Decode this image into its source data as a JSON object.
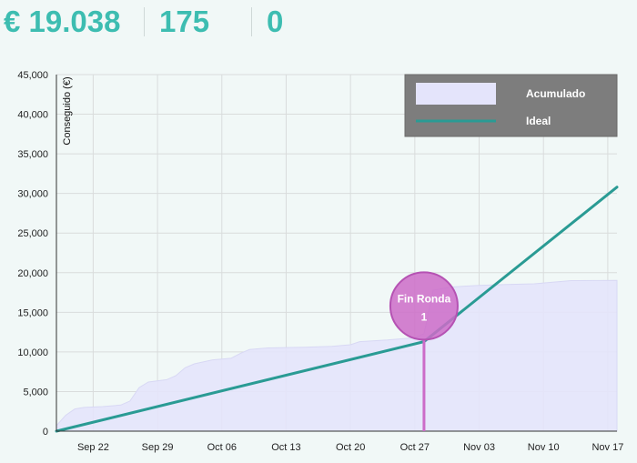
{
  "stats": {
    "amount": "€ 19.038",
    "count": "175",
    "third": "0"
  },
  "chart_data": {
    "type": "area",
    "ylabel": "Conseguido (€)",
    "ylim": [
      0,
      45000
    ],
    "yticks": [
      "0",
      "5,000",
      "10,000",
      "15,000",
      "20,000",
      "25,000",
      "30,000",
      "35,000",
      "40,000",
      "45,000"
    ],
    "xstart": "Sep 18",
    "xticks": [
      {
        "label": "Sep 22",
        "date": "2023-09-22"
      },
      {
        "label": "Sep 29",
        "date": "2023-09-29"
      },
      {
        "label": "Oct 06",
        "date": "2023-10-06"
      },
      {
        "label": "Oct 13",
        "date": "2023-10-13"
      },
      {
        "label": "Oct 20",
        "date": "2023-10-20"
      },
      {
        "label": "Oct 27",
        "date": "2023-10-27"
      },
      {
        "label": "Nov 03",
        "date": "2023-11-03"
      },
      {
        "label": "Nov 10",
        "date": "2023-11-10"
      },
      {
        "label": "Nov 17",
        "date": "2023-11-17"
      }
    ],
    "grid": true,
    "legend_position": "top-right",
    "series": [
      {
        "name": "Acumulado",
        "type": "area",
        "color": "#e4e4fb",
        "points": [
          [
            "2023-09-18",
            700
          ],
          [
            "2023-09-19",
            2000
          ],
          [
            "2023-09-20",
            2800
          ],
          [
            "2023-09-21",
            3000
          ],
          [
            "2023-09-23",
            3100
          ],
          [
            "2023-09-25",
            3300
          ],
          [
            "2023-09-26",
            3800
          ],
          [
            "2023-09-27",
            5500
          ],
          [
            "2023-09-28",
            6200
          ],
          [
            "2023-09-30",
            6500
          ],
          [
            "2023-10-01",
            7000
          ],
          [
            "2023-10-02",
            8000
          ],
          [
            "2023-10-03",
            8500
          ],
          [
            "2023-10-05",
            9000
          ],
          [
            "2023-10-07",
            9200
          ],
          [
            "2023-10-08",
            9800
          ],
          [
            "2023-10-09",
            10300
          ],
          [
            "2023-10-11",
            10500
          ],
          [
            "2023-10-15",
            10600
          ],
          [
            "2023-10-18",
            10700
          ],
          [
            "2023-10-20",
            10900
          ],
          [
            "2023-10-21",
            11300
          ],
          [
            "2023-10-24",
            11500
          ],
          [
            "2023-10-27",
            11800
          ],
          [
            "2023-10-28",
            12300
          ],
          [
            "2023-10-29",
            17800
          ],
          [
            "2023-10-31",
            18200
          ],
          [
            "2023-11-03",
            18400
          ],
          [
            "2023-11-06",
            18500
          ],
          [
            "2023-11-09",
            18600
          ],
          [
            "2023-11-11",
            18800
          ],
          [
            "2023-11-13",
            19000
          ],
          [
            "2023-11-18",
            19038
          ]
        ]
      },
      {
        "name": "Ideal",
        "type": "line",
        "color": "#2a9b94",
        "points": [
          [
            "2023-09-18",
            0
          ],
          [
            "2023-10-28",
            11300
          ],
          [
            "2023-11-18",
            30800
          ]
        ]
      }
    ],
    "annotations": [
      {
        "label_line1": "Fin Ronda",
        "label_line2": "1",
        "date": "2023-10-28",
        "value": 15800,
        "color": "#cc6cc8"
      }
    ]
  }
}
